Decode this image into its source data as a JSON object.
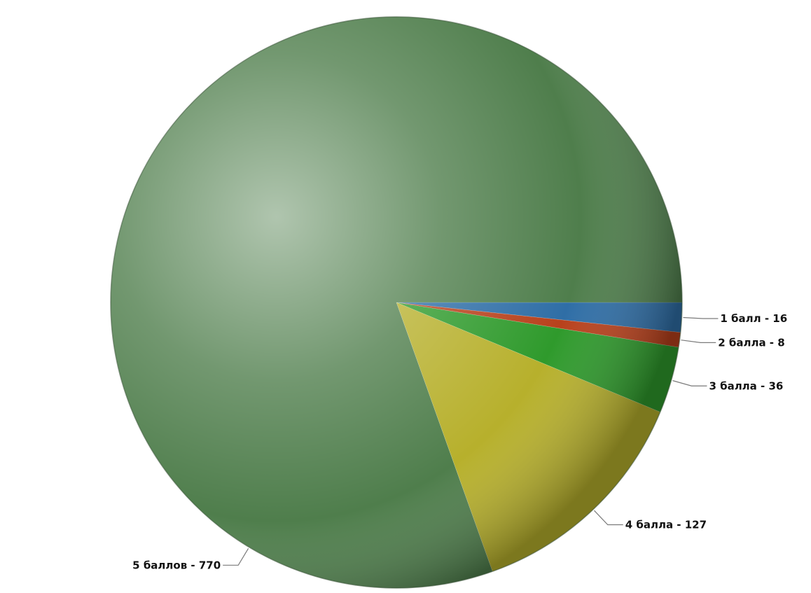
{
  "chart_data": {
    "type": "pie",
    "title": "",
    "slices": [
      {
        "label": "1 балл - 16",
        "name": "1 балл",
        "value": 16,
        "color": "#2f6ea6"
      },
      {
        "label": "2 балла - 8",
        "name": "2 балла",
        "value": 8,
        "color": "#b8411c"
      },
      {
        "label": "3 балла - 36",
        "name": "3 балла",
        "value": 36,
        "color": "#2f9a2c"
      },
      {
        "label": "4 балла - 127",
        "name": "4 балла",
        "value": 127,
        "color": "#b7b02c"
      },
      {
        "label": "5 баллов - 770",
        "name": "5 баллов",
        "value": 770,
        "color": "#4f7e4c"
      }
    ],
    "start_direction": "3 o'clock",
    "direction": "clockwise",
    "legend": "none",
    "style": "3D shaded"
  }
}
